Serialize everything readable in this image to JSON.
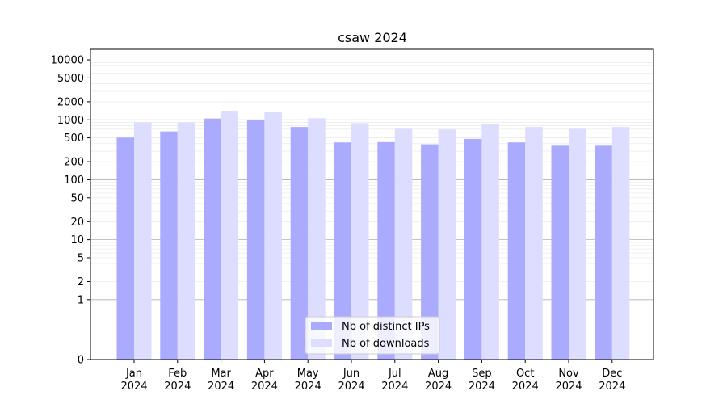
{
  "chart_data": {
    "type": "bar",
    "title": "csaw 2024",
    "xlabel": "",
    "ylabel": "",
    "yscale": "symlog",
    "ylim": [
      0,
      15000
    ],
    "yticks": [
      0,
      1,
      2,
      5,
      10,
      20,
      50,
      100,
      200,
      500,
      1000,
      2000,
      5000,
      10000
    ],
    "major_grid": [
      1,
      10,
      100,
      1000
    ],
    "minor_grid": true,
    "legend_position": "lower-center",
    "categories": [
      {
        "month": "Jan",
        "year": "2024"
      },
      {
        "month": "Feb",
        "year": "2024"
      },
      {
        "month": "Mar",
        "year": "2024"
      },
      {
        "month": "Apr",
        "year": "2024"
      },
      {
        "month": "May",
        "year": "2024"
      },
      {
        "month": "Jun",
        "year": "2024"
      },
      {
        "month": "Jul",
        "year": "2024"
      },
      {
        "month": "Aug",
        "year": "2024"
      },
      {
        "month": "Sep",
        "year": "2024"
      },
      {
        "month": "Oct",
        "year": "2024"
      },
      {
        "month": "Nov",
        "year": "2024"
      },
      {
        "month": "Dec",
        "year": "2024"
      }
    ],
    "series": [
      {
        "name": "Nb of distinct IPs",
        "color": "#aaaaff",
        "values": [
          505,
          640,
          1050,
          990,
          760,
          420,
          425,
          390,
          480,
          420,
          370,
          370
        ]
      },
      {
        "name": "Nb of downloads",
        "color": "#ddddff",
        "values": [
          910,
          910,
          1420,
          1350,
          1060,
          880,
          710,
          690,
          860,
          760,
          710,
          760
        ]
      }
    ]
  }
}
